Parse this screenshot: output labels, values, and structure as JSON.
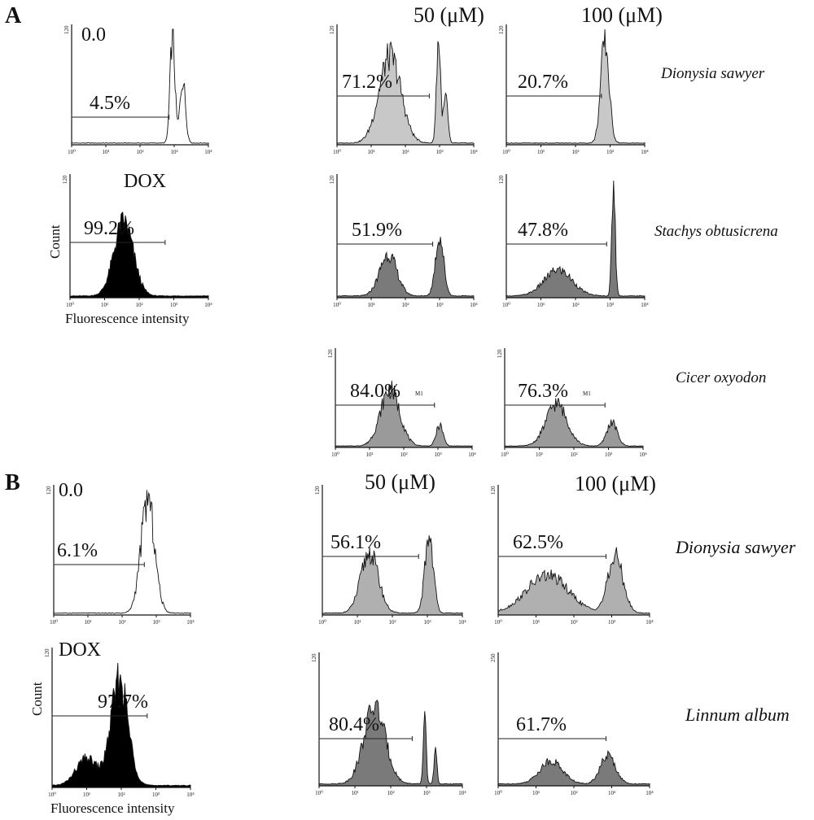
{
  "panels": [
    {
      "letter": "A",
      "conc_low": "50 (μM)",
      "conc_high": "100 (μM)"
    },
    {
      "letter": "B",
      "conc_low": "50 (μM)",
      "conc_high": "100 (μM)"
    }
  ],
  "axes": {
    "count": "Count",
    "fluorescence": "Fluorescence intensity",
    "marker": "M1"
  },
  "chart_data": [
    {
      "type": "histogram",
      "panel": "A",
      "label": "0.0",
      "percent": "4.5%",
      "fill": "#ffffff",
      "ymax": "120",
      "x_ticks": [
        "10⁰",
        "10¹",
        "10²",
        "10³",
        "10⁴"
      ],
      "peaks": [
        [
          2.95,
          0.93,
          0.07
        ],
        [
          3.25,
          0.55,
          0.08
        ]
      ],
      "gate": [
        0.0,
        2.85
      ]
    },
    {
      "type": "histogram",
      "panel": "A",
      "label": "DOX",
      "percent": "99.2%",
      "fill": "#000000",
      "ymax": "120",
      "x_ticks": [
        "10⁰",
        "10¹",
        "10²",
        "10³",
        "10⁴"
      ],
      "peaks": [
        [
          1.55,
          0.62,
          0.28
        ]
      ],
      "gate": [
        0.0,
        2.75
      ]
    },
    {
      "type": "histogram",
      "panel": "A",
      "conc": "50 (μM)",
      "species": "Dionysia sawyer",
      "percent": "71.2%",
      "fill": "#c8c8c8",
      "ymax": "120",
      "x_ticks": [
        "10⁰",
        "10¹",
        "10²",
        "10³",
        "10⁴"
      ],
      "peaks": [
        [
          1.55,
          0.75,
          0.32
        ],
        [
          2.97,
          0.9,
          0.06
        ],
        [
          3.18,
          0.4,
          0.06
        ]
      ],
      "gate": [
        0.0,
        2.7
      ]
    },
    {
      "type": "histogram",
      "panel": "A",
      "conc": "100 (μM)",
      "species": "Dionysia sawyer",
      "percent": "20.7%",
      "fill": "#c8c8c8",
      "ymax": "120",
      "x_ticks": [
        "10⁰",
        "10¹",
        "10²",
        "10³",
        "10⁴"
      ],
      "peaks": [
        [
          2.85,
          0.88,
          0.12
        ]
      ],
      "gate": [
        0.0,
        2.75
      ]
    },
    {
      "type": "histogram",
      "panel": "A",
      "conc": "50 (μM)",
      "species": "Stachys obtusicrena",
      "percent": "51.9%",
      "fill": "#7a7a7a",
      "ymax": "120",
      "x_ticks": [
        "10⁰",
        "10¹",
        "10²",
        "10³",
        "10⁴"
      ],
      "peaks": [
        [
          1.5,
          0.35,
          0.25
        ],
        [
          3.0,
          0.5,
          0.12
        ]
      ],
      "gate": [
        0.0,
        2.8
      ]
    },
    {
      "type": "histogram",
      "panel": "A",
      "conc": "100 (μM)",
      "species": "Stachys obtusicrena",
      "percent": "47.8%",
      "fill": "#7a7a7a",
      "ymax": "120",
      "x_ticks": [
        "10⁰",
        "10¹",
        "10²",
        "10³",
        "10⁴"
      ],
      "peaks": [
        [
          1.5,
          0.22,
          0.4
        ],
        [
          3.1,
          0.95,
          0.05
        ]
      ],
      "gate": [
        0.0,
        2.9
      ]
    },
    {
      "type": "histogram",
      "panel": "A",
      "conc": "50 (μM)",
      "species": "Cicer oxyodon",
      "percent": "84.0%",
      "fill": "#9a9a9a",
      "ymax": "120",
      "x_ticks": [
        "10⁰",
        "10¹",
        "10²",
        "10³",
        "10⁴"
      ],
      "peaks": [
        [
          1.6,
          0.6,
          0.28
        ],
        [
          3.05,
          0.22,
          0.1
        ]
      ],
      "gate": [
        0.0,
        2.9
      ]
    },
    {
      "type": "histogram",
      "panel": "A",
      "conc": "100 (μM)",
      "species": "Cicer oxyodon",
      "percent": "76.3%",
      "fill": "#9a9a9a",
      "ymax": "120",
      "x_ticks": [
        "10⁰",
        "10¹",
        "10²",
        "10³",
        "10⁴"
      ],
      "peaks": [
        [
          1.5,
          0.45,
          0.3
        ],
        [
          3.1,
          0.25,
          0.15
        ]
      ],
      "gate": [
        0.0,
        2.9
      ]
    },
    {
      "type": "histogram",
      "panel": "B",
      "label": "0.0",
      "percent": "6.1%",
      "fill": "#ffffff",
      "ymax": "120",
      "x_ticks": [
        "10⁰",
        "10¹",
        "10²",
        "10³",
        "10⁴"
      ],
      "peaks": [
        [
          2.75,
          0.9,
          0.2
        ]
      ],
      "gate": [
        0.0,
        2.65
      ]
    },
    {
      "type": "histogram",
      "panel": "B",
      "label": "DOX",
      "percent": "97.7%",
      "fill": "#000000",
      "ymax": "120",
      "x_ticks": [
        "10⁰",
        "10¹",
        "10²",
        "10³",
        "10⁴"
      ],
      "peaks": [
        [
          1.95,
          0.78,
          0.25
        ],
        [
          1.0,
          0.2,
          0.3
        ]
      ],
      "gate": [
        0.0,
        2.75
      ]
    },
    {
      "type": "histogram",
      "panel": "B",
      "conc": "50 (μM)",
      "species": "Dionysia sawyer",
      "percent": "56.1%",
      "fill": "#b0b0b0",
      "ymax": "120",
      "x_ticks": [
        "10⁰",
        "10¹",
        "10²",
        "10³",
        "10⁴"
      ],
      "peaks": [
        [
          1.35,
          0.48,
          0.25
        ],
        [
          3.05,
          0.62,
          0.12
        ]
      ],
      "gate": [
        0.0,
        2.75
      ]
    },
    {
      "type": "histogram",
      "panel": "B",
      "conc": "100 (μM)",
      "species": "Dionysia sawyer",
      "percent": "62.5%",
      "fill": "#b0b0b0",
      "ymax": "120",
      "x_ticks": [
        "10⁰",
        "10¹",
        "10²",
        "10³",
        "10⁴"
      ],
      "peaks": [
        [
          1.3,
          0.3,
          0.55
        ],
        [
          3.1,
          0.45,
          0.2
        ]
      ],
      "gate": [
        0.0,
        2.85
      ]
    },
    {
      "type": "histogram",
      "panel": "B",
      "conc": "50 (μM)",
      "species": "Linnum album",
      "percent": "80.4%",
      "fill": "#7a7a7a",
      "ymax": "120",
      "x_ticks": [
        "10⁰",
        "10¹",
        "10²",
        "10³",
        "10⁴"
      ],
      "peaks": [
        [
          1.55,
          0.6,
          0.3
        ],
        [
          2.95,
          0.55,
          0.04
        ],
        [
          3.25,
          0.25,
          0.04
        ]
      ],
      "gate": [
        0.0,
        2.6
      ]
    },
    {
      "type": "histogram",
      "panel": "B",
      "conc": "100 (μM)",
      "species": "Linnum album",
      "percent": "61.7%",
      "fill": "#7a7a7a",
      "ymax": "250",
      "x_ticks": [
        "10⁰",
        "10¹",
        "10²",
        "10³",
        "10⁴"
      ],
      "peaks": [
        [
          1.4,
          0.18,
          0.3
        ],
        [
          2.9,
          0.22,
          0.2
        ]
      ],
      "gate": [
        0.0,
        2.85
      ]
    }
  ]
}
